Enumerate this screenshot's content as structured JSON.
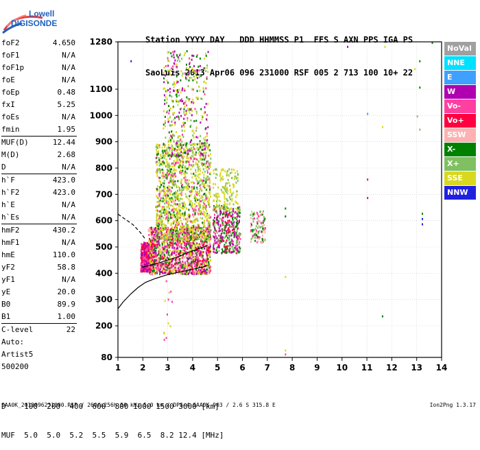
{
  "logo": {
    "line1": "Lowell",
    "line2": "DIGISONDE"
  },
  "header": {
    "row1": "Station YYYY DAY   DDD HHMMSS P1  FFS S AXN PPS IGA PS",
    "row2": "SaoLuis 2013 Apr06 096 231000 RSF 005 2 713 100 10+ 22"
  },
  "params": [
    {
      "name": "foF2",
      "value": "4.650"
    },
    {
      "name": "foF1",
      "value": "N/A"
    },
    {
      "name": "foF1p",
      "value": "N/A"
    },
    {
      "name": "foE",
      "value": "N/A"
    },
    {
      "name": "foEp",
      "value": "0.48"
    },
    {
      "name": "fxI",
      "value": "5.25"
    },
    {
      "name": "foEs",
      "value": "N/A"
    },
    {
      "name": "fmin",
      "value": "1.95"
    },
    {
      "name": "MUF(D)",
      "value": "12.44"
    },
    {
      "name": "M(D)",
      "value": "2.68"
    },
    {
      "name": "D",
      "value": "N/A"
    },
    {
      "name": "h`F",
      "value": "423.0"
    },
    {
      "name": "h`F2",
      "value": "423.0"
    },
    {
      "name": "h`E",
      "value": "N/A"
    },
    {
      "name": "h`Es",
      "value": "N/A"
    },
    {
      "name": "hmF2",
      "value": "430.2"
    },
    {
      "name": "hmF1",
      "value": "N/A"
    },
    {
      "name": "hmE",
      "value": "110.0"
    },
    {
      "name": "yF2",
      "value": "58.8"
    },
    {
      "name": "yF1",
      "value": "N/A"
    },
    {
      "name": "yE",
      "value": "20.0"
    },
    {
      "name": "B0",
      "value": "89.9"
    },
    {
      "name": "B1",
      "value": "1.00"
    },
    {
      "name": "C-level",
      "value": "22"
    }
  ],
  "auto": {
    "line1": "Auto:",
    "line2": "Artist5",
    "line3": "500200"
  },
  "legend": [
    {
      "label": "NoVal",
      "color": "#a0a0a0"
    },
    {
      "label": "NNE",
      "color": "#00e0ff"
    },
    {
      "label": "E",
      "color": "#40a0ff"
    },
    {
      "label": "W",
      "color": "#b000b0"
    },
    {
      "label": "Vo-",
      "color": "#ff40a0"
    },
    {
      "label": "Vo+",
      "color": "#ff0040"
    },
    {
      "label": "SSW",
      "color": "#ffb0b0"
    },
    {
      "label": "X-",
      "color": "#008000"
    },
    {
      "label": "X+",
      "color": "#80c060"
    },
    {
      "label": "SSE",
      "color": "#d8d820"
    },
    {
      "label": "NNW",
      "color": "#2020e0"
    }
  ],
  "muf_table": {
    "row1": "D    100  200  400  600  800 1000 1500 3000 [km]",
    "row2": "MUF  5.0  5.0  5.2  5.5  5.9  6.5  8.2 12.4 [MHz]"
  },
  "footer": "SAA0K_2013096231000.RSF / 260fx256h 50 kHz 5.0 km / DPS-4 SAA0K 903 / 2.6 S 315.8 E",
  "footer_right": "Ion2Png 1.3.17",
  "chart_data": {
    "type": "scatter",
    "title": "",
    "xlabel": "",
    "ylabel": "",
    "xlim": [
      1,
      14
    ],
    "ylim": [
      80,
      1280
    ],
    "x_ticks": [
      1,
      2,
      3,
      4,
      5,
      6,
      7,
      8,
      9,
      10,
      11,
      12,
      13,
      14
    ],
    "y_ticks": [
      80,
      200,
      300,
      400,
      500,
      600,
      700,
      800,
      900,
      1000,
      1100,
      1280
    ],
    "grid": true,
    "series": [
      {
        "style": "solid",
        "x": [
          1.0,
          1.2,
          1.5,
          1.8,
          2.1,
          2.5,
          3.0,
          3.5,
          4.0,
          4.4,
          4.6
        ],
        "y": [
          265,
          290,
          320,
          345,
          365,
          380,
          395,
          405,
          415,
          423,
          430
        ]
      },
      {
        "style": "solid",
        "x": [
          1.95,
          2.2,
          2.6,
          3.0,
          3.4,
          3.8,
          4.2,
          4.6
        ],
        "y": [
          423,
          428,
          438,
          450,
          462,
          478,
          492,
          505
        ]
      },
      {
        "style": "dashed",
        "x": [
          1.0,
          1.3,
          1.6,
          1.9,
          2.1
        ],
        "y": [
          625,
          605,
          585,
          555,
          530
        ]
      }
    ],
    "echo_clusters": [
      {
        "x": [
          1.9,
          2.4
        ],
        "y": [
          410,
          520
        ],
        "n": 500,
        "colors": [
          "#ff0040",
          "#ff40a0",
          "#b000b0"
        ]
      },
      {
        "x": [
          2.2,
          4.7
        ],
        "y": [
          400,
          580
        ],
        "n": 1400,
        "colors": [
          "#ff0040",
          "#ff40a0",
          "#b000b0",
          "#ffb0b0",
          "#008000",
          "#d8d820"
        ]
      },
      {
        "x": [
          2.5,
          4.7
        ],
        "y": [
          530,
          900
        ],
        "n": 1300,
        "colors": [
          "#d8d820",
          "#d8d820",
          "#d8d820",
          "#008000",
          "#80c060",
          "#ff40a0"
        ]
      },
      {
        "x": [
          2.8,
          4.6
        ],
        "y": [
          850,
          1250
        ],
        "n": 420,
        "colors": [
          "#d8d820",
          "#d8d820",
          "#008000",
          "#ff40a0",
          "#b000b0",
          "#80c060"
        ]
      },
      {
        "x": [
          4.8,
          5.9
        ],
        "y": [
          480,
          660
        ],
        "n": 380,
        "colors": [
          "#008000",
          "#80c060",
          "#ff40a0",
          "#b000b0",
          "#ff0040"
        ]
      },
      {
        "x": [
          4.8,
          5.8
        ],
        "y": [
          640,
          800
        ],
        "n": 160,
        "colors": [
          "#d8d820",
          "#d8d820",
          "#80c060"
        ]
      },
      {
        "x": [
          6.3,
          6.9
        ],
        "y": [
          520,
          640
        ],
        "n": 110,
        "colors": [
          "#ff40a0",
          "#008000",
          "#80c060",
          "#ffb0b0"
        ]
      },
      {
        "x": [
          2.8,
          3.2
        ],
        "y": [
          150,
          420
        ],
        "n": 14,
        "colors": [
          "#d8d820",
          "#ff40a0"
        ]
      }
    ],
    "stray_points": [
      {
        "x": 1.5,
        "y": 1210,
        "c": "#2020e0"
      },
      {
        "x": 10.2,
        "y": 1265,
        "c": "#b000b0"
      },
      {
        "x": 11.0,
        "y": 1010,
        "c": "#40a0ff"
      },
      {
        "x": 11.6,
        "y": 960,
        "c": "#d8d820"
      },
      {
        "x": 11.7,
        "y": 1265,
        "c": "#d8d820"
      },
      {
        "x": 11.0,
        "y": 760,
        "c": "#ff0040"
      },
      {
        "x": 11.0,
        "y": 690,
        "c": "#ff0040"
      },
      {
        "x": 11.6,
        "y": 240,
        "c": "#008000"
      },
      {
        "x": 13.1,
        "y": 1210,
        "c": "#008000"
      },
      {
        "x": 13.1,
        "y": 1110,
        "c": "#008000"
      },
      {
        "x": 13.2,
        "y": 610,
        "c": "#2020e0"
      },
      {
        "x": 13.2,
        "y": 590,
        "c": "#2020e0"
      },
      {
        "x": 13.2,
        "y": 630,
        "c": "#008000"
      },
      {
        "x": 13.6,
        "y": 1280,
        "c": "#008000"
      },
      {
        "x": 7.7,
        "y": 650,
        "c": "#008000"
      },
      {
        "x": 7.7,
        "y": 620,
        "c": "#008000"
      },
      {
        "x": 7.7,
        "y": 390,
        "c": "#d8d820"
      },
      {
        "x": 7.7,
        "y": 110,
        "c": "#d8d820"
      },
      {
        "x": 7.7,
        "y": 95,
        "c": "#ff40a0"
      },
      {
        "x": 12.9,
        "y": 1180,
        "c": "#d8d820"
      },
      {
        "x": 13.1,
        "y": 950,
        "c": "#80c060"
      },
      {
        "x": 13.0,
        "y": 1000,
        "c": "#80c060"
      }
    ]
  }
}
